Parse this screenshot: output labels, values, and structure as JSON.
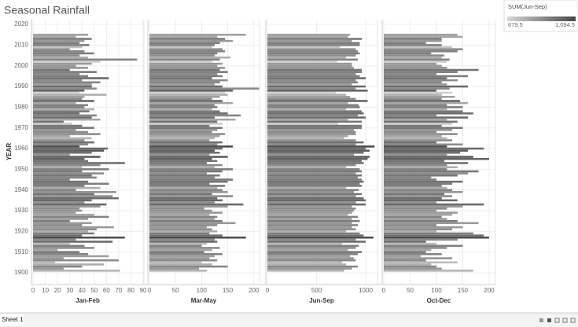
{
  "chart_data": {
    "type": "bar",
    "orientation": "horizontal",
    "title": "Seasonal Rainfall",
    "ylabel": "YEAR",
    "years": [
      1901,
      1902,
      1903,
      1904,
      1905,
      1906,
      1907,
      1908,
      1909,
      1910,
      1911,
      1912,
      1913,
      1914,
      1915,
      1916,
      1917,
      1918,
      1919,
      1920,
      1921,
      1922,
      1923,
      1924,
      1925,
      1926,
      1927,
      1928,
      1929,
      1930,
      1931,
      1932,
      1933,
      1934,
      1935,
      1936,
      1937,
      1938,
      1939,
      1940,
      1941,
      1942,
      1943,
      1944,
      1945,
      1946,
      1947,
      1948,
      1949,
      1950,
      1951,
      1952,
      1953,
      1954,
      1955,
      1956,
      1957,
      1958,
      1959,
      1960,
      1961,
      1962,
      1963,
      1964,
      1965,
      1966,
      1967,
      1968,
      1969,
      1970,
      1971,
      1972,
      1973,
      1974,
      1975,
      1976,
      1977,
      1978,
      1979,
      1980,
      1981,
      1982,
      1983,
      1984,
      1985,
      1986,
      1987,
      1988,
      1989,
      1990,
      1991,
      1992,
      1993,
      1994,
      1995,
      1996,
      1997,
      1998,
      1999,
      2000,
      2001,
      2002,
      2003,
      2004,
      2005,
      2006,
      2007,
      2008,
      2009,
      2010,
      2011,
      2012,
      2013,
      2014,
      2015
    ],
    "ylim": [
      1894.3,
      2022.3
    ],
    "yticks": [
      1900,
      1910,
      1920,
      1930,
      1940,
      1950,
      1960,
      1970,
      1980,
      1990,
      2000,
      2010,
      2020
    ],
    "grid": true,
    "series": [
      {
        "name": "Jan-Feb",
        "xlim": [
          -1.3,
          90.6
        ],
        "xticks": [
          0,
          10,
          20,
          30,
          40,
          50,
          60,
          70,
          80,
          90
        ],
        "values": [
          71,
          25,
          40,
          58,
          18,
          70,
          25,
          62,
          45,
          38,
          20,
          50,
          42,
          30,
          65,
          35,
          75,
          40,
          50,
          45,
          52,
          66,
          40,
          48,
          30,
          45,
          62,
          50,
          35,
          40,
          38,
          55,
          60,
          42,
          48,
          70,
          65,
          50,
          68,
          35,
          55,
          42,
          62,
          45,
          30,
          52,
          48,
          58,
          40,
          62,
          40,
          55,
          75,
          45,
          42,
          55,
          30,
          48,
          58,
          61,
          38,
          45,
          50,
          42,
          48,
          30,
          55,
          45,
          35,
          50,
          40,
          32,
          25,
          55,
          48,
          52,
          38,
          46,
          50,
          42,
          45,
          35,
          50,
          40,
          42,
          60,
          38,
          42,
          52,
          48,
          48,
          55,
          40,
          62,
          45,
          38,
          52,
          30,
          45,
          35,
          48,
          55,
          85,
          45,
          38,
          50,
          42,
          30,
          40,
          46,
          38,
          42,
          48,
          35,
          45
        ]
      },
      {
        "name": "Mar-May",
        "xlim": [
          -3,
          211
        ],
        "xticks": [
          0,
          50,
          100,
          150,
          200
        ],
        "values": [
          110,
          95,
          150,
          120,
          100,
          130,
          115,
          125,
          140,
          105,
          120,
          135,
          100,
          110,
          130,
          125,
          185,
          140,
          115,
          130,
          120,
          110,
          130,
          165,
          140,
          125,
          130,
          115,
          140,
          120,
          105,
          150,
          180,
          125,
          140,
          130,
          160,
          120,
          150,
          140,
          130,
          145,
          115,
          150,
          160,
          125,
          135,
          110,
          140,
          160,
          125,
          140,
          110,
          130,
          120,
          150,
          115,
          135,
          125,
          140,
          160,
          130,
          140,
          115,
          125,
          135,
          145,
          120,
          130,
          140,
          115,
          140,
          130,
          165,
          125,
          175,
          150,
          135,
          120,
          130,
          125,
          160,
          140,
          120,
          135,
          150,
          145,
          160,
          210,
          140,
          125,
          135,
          150,
          120,
          140,
          130,
          150,
          135,
          145,
          130,
          140,
          120,
          135,
          155,
          125,
          130,
          145,
          140,
          120,
          125,
          135,
          160,
          145,
          130,
          185
        ]
      },
      {
        "name": "Jun-Sep",
        "xlim": [
          -16,
          1120
        ],
        "xticks": [
          0,
          500,
          1000
        ],
        "values": [
          780,
          860,
          920,
          800,
          760,
          900,
          880,
          840,
          920,
          960,
          820,
          900,
          930,
          760,
          1000,
          900,
          1080,
          980,
          940,
          800,
          900,
          860,
          920,
          860,
          940,
          860,
          920,
          820,
          860,
          880,
          900,
          860,
          1000,
          900,
          1000,
          980,
          900,
          960,
          880,
          930,
          800,
          960,
          940,
          980,
          960,
          920,
          960,
          900,
          960,
          940,
          800,
          900,
          980,
          960,
          1020,
          1040,
          880,
          980,
          1040,
          1000,
          1090,
          900,
          980,
          900,
          780,
          820,
          900,
          900,
          880,
          960,
          960,
          720,
          960,
          820,
          1000,
          920,
          980,
          960,
          800,
          940,
          930,
          820,
          1020,
          900,
          840,
          800,
          700,
          1020,
          900,
          1000,
          860,
          920,
          900,
          1000,
          940,
          900,
          960,
          960,
          880,
          860,
          860,
          710,
          920,
          800,
          900,
          940,
          920,
          900,
          740,
          940,
          940,
          860,
          960,
          820,
          840
        ]
      },
      {
        "name": "Oct-Dec",
        "xlim": [
          -3,
          212
        ],
        "xticks": [
          0,
          50,
          100,
          150,
          200
        ],
        "values": [
          170,
          110,
          100,
          90,
          140,
          80,
          130,
          70,
          110,
          80,
          90,
          120,
          150,
          100,
          80,
          140,
          200,
          190,
          170,
          100,
          130,
          150,
          100,
          180,
          140,
          120,
          110,
          130,
          140,
          100,
          120,
          150,
          190,
          100,
          140,
          110,
          130,
          115,
          150,
          130,
          120,
          110,
          130,
          150,
          100,
          90,
          140,
          160,
          180,
          120,
          140,
          120,
          160,
          115,
          200,
          170,
          120,
          145,
          160,
          190,
          120,
          150,
          100,
          130,
          120,
          110,
          140,
          100,
          130,
          150,
          110,
          130,
          140,
          120,
          160,
          100,
          170,
          150,
          120,
          150,
          120,
          160,
          145,
          110,
          135,
          110,
          130,
          100,
          125,
          160,
          120,
          110,
          140,
          120,
          160,
          100,
          140,
          180,
          120,
          110,
          100,
          120,
          125,
          110,
          115,
          90,
          140,
          150,
          130,
          110,
          80,
          110,
          110,
          150,
          140
        ]
      }
    ],
    "color_legend": {
      "title": "SUM(Jun-Sep)",
      "series": 2,
      "colors": [
        "#d6d6d6",
        "#474747"
      ],
      "range": [
        679.5,
        {
          "value": 1094.5,
          "label": "1,094.5"
        }
      ]
    }
  },
  "tabs": [
    "Sheet 1"
  ]
}
